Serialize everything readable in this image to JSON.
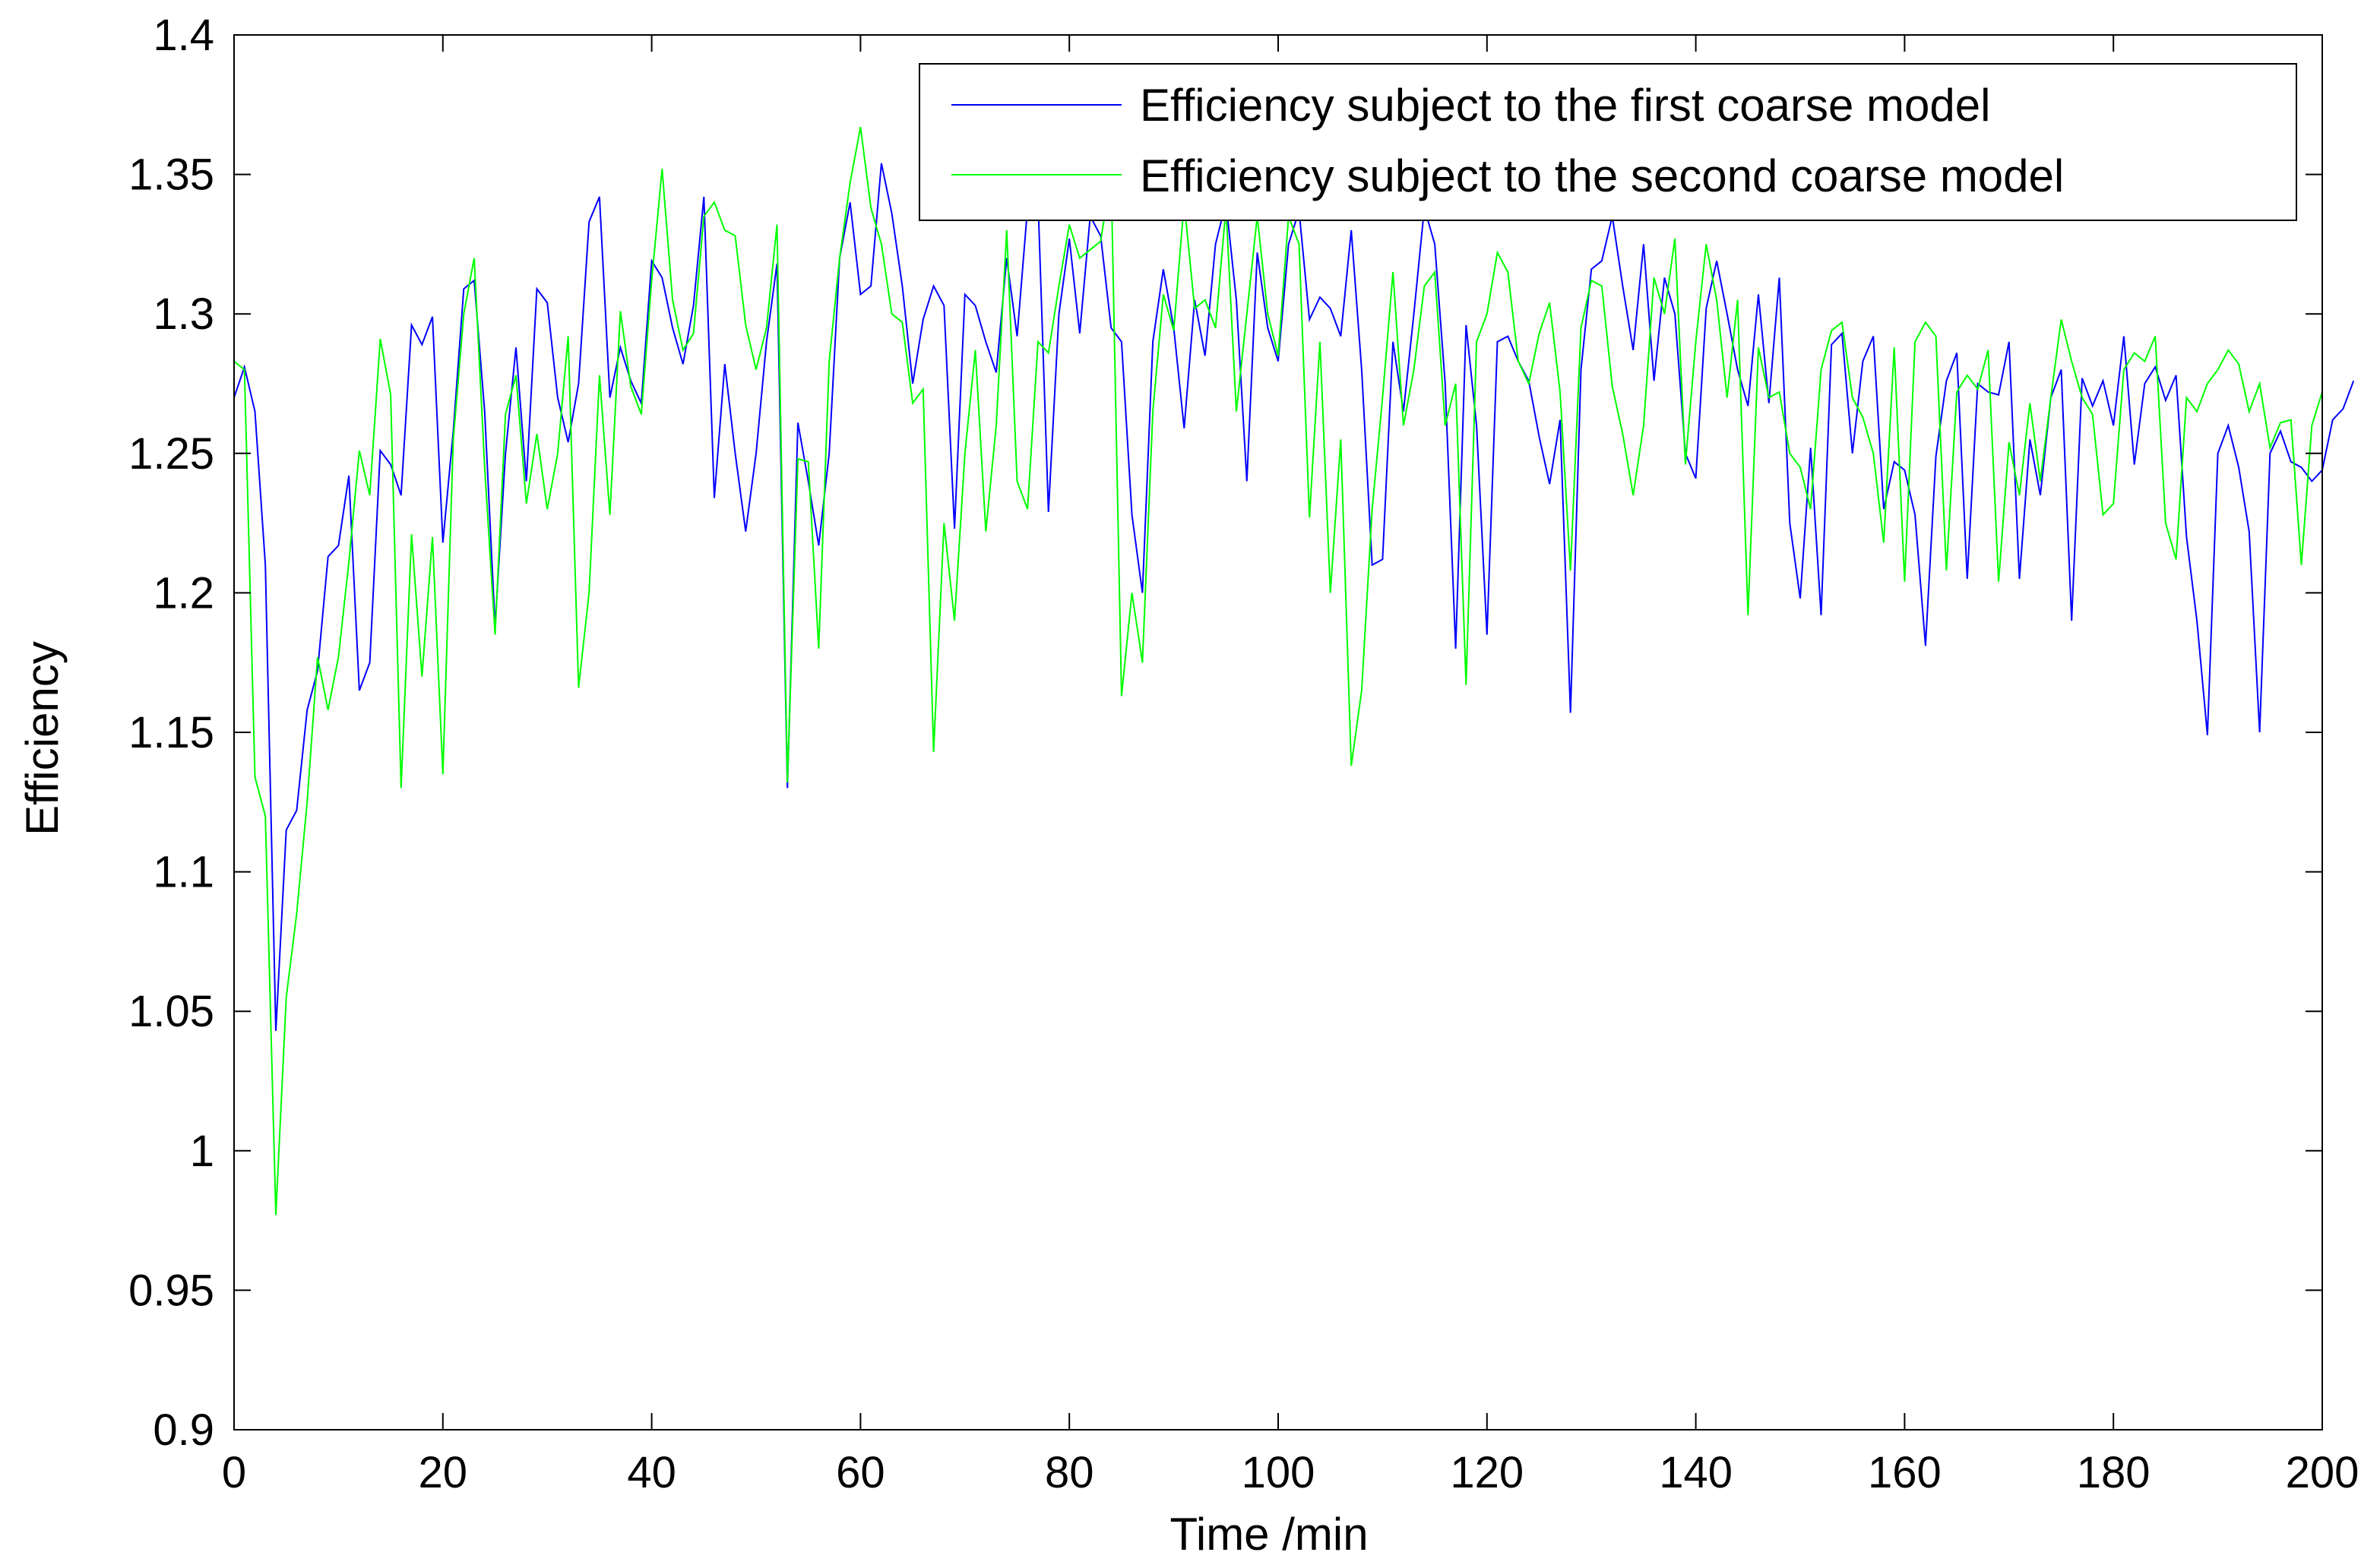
{
  "chart_data": {
    "type": "line",
    "title": "",
    "xlabel": "Time /min",
    "ylabel": "Efficiency",
    "xlim": [
      0,
      200
    ],
    "ylim": [
      0.9,
      1.4
    ],
    "xticks": [
      0,
      20,
      40,
      60,
      80,
      100,
      120,
      140,
      160,
      180,
      200
    ],
    "yticks": [
      0.9,
      0.95,
      1,
      1.05,
      1.1,
      1.15,
      1.2,
      1.25,
      1.3,
      1.35,
      1.4
    ],
    "ytick_labels": [
      "0.9",
      "0.95",
      "1",
      "1.05",
      "1.1",
      "1.15",
      "1.2",
      "1.25",
      "1.3",
      "1.35",
      "1.4"
    ],
    "grid": false,
    "legend_position": "top-right",
    "x_step": 1,
    "series": [
      {
        "name": "Efficiency subject to the first coarse  model",
        "color": "#0000ff",
        "values": [
          1.27,
          1.281,
          1.265,
          1.21,
          1.043,
          1.115,
          1.122,
          1.158,
          1.172,
          1.213,
          1.217,
          1.242,
          1.165,
          1.175,
          1.251,
          1.246,
          1.235,
          1.296,
          1.289,
          1.299,
          1.218,
          1.258,
          1.309,
          1.312,
          1.265,
          1.188,
          1.25,
          1.288,
          1.24,
          1.309,
          1.304,
          1.27,
          1.254,
          1.275,
          1.333,
          1.342,
          1.27,
          1.288,
          1.276,
          1.268,
          1.319,
          1.313,
          1.295,
          1.282,
          1.303,
          1.342,
          1.234,
          1.282,
          1.25,
          1.222,
          1.25,
          1.29,
          1.318,
          1.13,
          1.261,
          1.24,
          1.217,
          1.25,
          1.32,
          1.34,
          1.307,
          1.31,
          1.354,
          1.336,
          1.31,
          1.275,
          1.298,
          1.31,
          1.303,
          1.223,
          1.307,
          1.303,
          1.29,
          1.279,
          1.32,
          1.292,
          1.338,
          1.341,
          1.229,
          1.3,
          1.327,
          1.293,
          1.335,
          1.328,
          1.295,
          1.29,
          1.228,
          1.2,
          1.29,
          1.316,
          1.295,
          1.259,
          1.305,
          1.285,
          1.325,
          1.34,
          1.305,
          1.24,
          1.322,
          1.295,
          1.283,
          1.325,
          1.337,
          1.298,
          1.306,
          1.302,
          1.292,
          1.33,
          1.28,
          1.21,
          1.212,
          1.29,
          1.265,
          1.3,
          1.338,
          1.325,
          1.275,
          1.18,
          1.296,
          1.26,
          1.185,
          1.29,
          1.292,
          1.283,
          1.276,
          1.256,
          1.239,
          1.262,
          1.157,
          1.28,
          1.316,
          1.319,
          1.335,
          1.31,
          1.287,
          1.325,
          1.276,
          1.313,
          1.3,
          1.25,
          1.241,
          1.302,
          1.319,
          1.3,
          1.28,
          1.267,
          1.307,
          1.268,
          1.313,
          1.225,
          1.198,
          1.252,
          1.192,
          1.289,
          1.293,
          1.25,
          1.283,
          1.292,
          1.23,
          1.247,
          1.244,
          1.228,
          1.181,
          1.249,
          1.276,
          1.286,
          1.205,
          1.275,
          1.272,
          1.271,
          1.29,
          1.205,
          1.255,
          1.235,
          1.27,
          1.28,
          1.19,
          1.277,
          1.267,
          1.276,
          1.26,
          1.292,
          1.246,
          1.275,
          1.281,
          1.269,
          1.278,
          1.22,
          1.19,
          1.149,
          1.25,
          1.26,
          1.245,
          1.222,
          1.15,
          1.25,
          1.258,
          1.247,
          1.245,
          1.24,
          1.244,
          1.262,
          1.266,
          1.276
        ]
      },
      {
        "name": "Efficiency subject to the second coarse model",
        "color": "#00ff00",
        "values": [
          1.283,
          1.28,
          1.134,
          1.12,
          0.977,
          1.055,
          1.085,
          1.125,
          1.177,
          1.158,
          1.177,
          1.211,
          1.251,
          1.235,
          1.291,
          1.271,
          1.13,
          1.221,
          1.17,
          1.22,
          1.135,
          1.255,
          1.3,
          1.32,
          1.245,
          1.185,
          1.264,
          1.278,
          1.232,
          1.257,
          1.23,
          1.25,
          1.292,
          1.166,
          1.2,
          1.278,
          1.228,
          1.301,
          1.274,
          1.264,
          1.312,
          1.352,
          1.305,
          1.287,
          1.293,
          1.335,
          1.34,
          1.33,
          1.328,
          1.296,
          1.28,
          1.295,
          1.332,
          1.132,
          1.248,
          1.247,
          1.18,
          1.283,
          1.32,
          1.347,
          1.367,
          1.338,
          1.325,
          1.3,
          1.297,
          1.268,
          1.273,
          1.143,
          1.225,
          1.19,
          1.25,
          1.287,
          1.222,
          1.26,
          1.33,
          1.24,
          1.23,
          1.29,
          1.286,
          1.31,
          1.332,
          1.32,
          1.323,
          1.326,
          1.35,
          1.163,
          1.2,
          1.175,
          1.265,
          1.307,
          1.294,
          1.34,
          1.302,
          1.305,
          1.295,
          1.338,
          1.265,
          1.3,
          1.335,
          1.3,
          1.285,
          1.335,
          1.325,
          1.227,
          1.29,
          1.2,
          1.255,
          1.138,
          1.165,
          1.23,
          1.27,
          1.315,
          1.26,
          1.28,
          1.31,
          1.315,
          1.26,
          1.275,
          1.167,
          1.29,
          1.3,
          1.322,
          1.315,
          1.283,
          1.275,
          1.293,
          1.304,
          1.272,
          1.208,
          1.295,
          1.312,
          1.31,
          1.274,
          1.257,
          1.235,
          1.26,
          1.313,
          1.3,
          1.327,
          1.246,
          1.29,
          1.325,
          1.305,
          1.27,
          1.305,
          1.192,
          1.288,
          1.27,
          1.272,
          1.25,
          1.245,
          1.23,
          1.28,
          1.294,
          1.297,
          1.27,
          1.263,
          1.25,
          1.218,
          1.288,
          1.204,
          1.29,
          1.297,
          1.292,
          1.208,
          1.272,
          1.278,
          1.273,
          1.287,
          1.204,
          1.254,
          1.235,
          1.268,
          1.24,
          1.27,
          1.298,
          1.283,
          1.27,
          1.264,
          1.228,
          1.232,
          1.28,
          1.286,
          1.283,
          1.292,
          1.225,
          1.212,
          1.27,
          1.265,
          1.275,
          1.28,
          1.287,
          1.282,
          1.265,
          1.275,
          1.252,
          1.261,
          1.262,
          1.21,
          1.26,
          1.272
        ]
      }
    ]
  }
}
